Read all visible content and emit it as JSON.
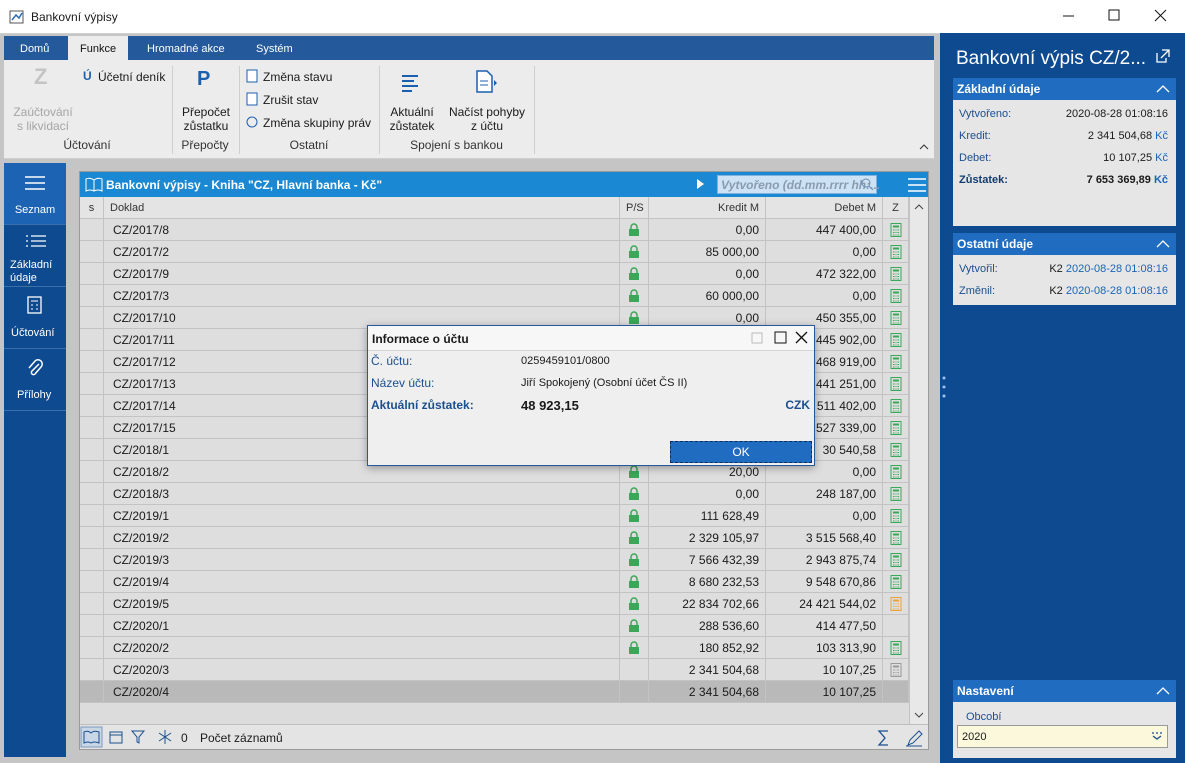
{
  "window": {
    "title": "Bankovní výpisy"
  },
  "ribbon": {
    "tabs": [
      "Domů",
      "Funkce",
      "Hromadné akce",
      "Systém"
    ],
    "active_tab": 1,
    "groups": [
      {
        "label": "Účtování",
        "items": [
          "Zaúčtování\ns likvidací",
          "Účetní deník"
        ]
      },
      {
        "label": "Přepočty",
        "items": [
          "Přepočet\nzůstatku"
        ]
      },
      {
        "label": "Ostatní",
        "items": [
          "Změna stavu",
          "Zrušit stav",
          "Změna skupiny práv"
        ]
      },
      {
        "label": "Spojení s bankou",
        "items": [
          "Aktuální\nzůstatek",
          "Načíst pohyby\nz účtu"
        ]
      }
    ]
  },
  "sidebar": {
    "items": [
      "Seznam",
      "Základní\núdaje",
      "Účtování",
      "Přílohy"
    ],
    "active": 0
  },
  "grid": {
    "title": "Bankovní výpisy - Kniha \"CZ, Hlavní banka - Kč\"",
    "search_placeholder": "Vytvořeno (dd.mm.rrrr hh:...",
    "columns": [
      "s",
      "Doklad",
      "P/S",
      "Kredit M",
      "Debet M",
      "Z"
    ],
    "selected_row": 21,
    "rows": [
      {
        "doklad": "CZ/2017/8",
        "kredit": "0,00",
        "debet": "447 400,00",
        "locked": true,
        "calc": "green"
      },
      {
        "doklad": "CZ/2017/2",
        "kredit": "85 000,00",
        "debet": "0,00",
        "locked": true,
        "calc": "green"
      },
      {
        "doklad": "CZ/2017/9",
        "kredit": "0,00",
        "debet": "472 322,00",
        "locked": true,
        "calc": "green"
      },
      {
        "doklad": "CZ/2017/3",
        "kredit": "60 000,00",
        "debet": "0,00",
        "locked": true,
        "calc": "green"
      },
      {
        "doklad": "CZ/2017/10",
        "kredit": "0,00",
        "debet": "450 355,00",
        "locked": true,
        "calc": "green"
      },
      {
        "doklad": "CZ/2017/11",
        "kredit": null,
        "debet": "445 902,00",
        "locked": true,
        "calc": "green"
      },
      {
        "doklad": "CZ/2017/12",
        "kredit": null,
        "debet": "468 919,00",
        "locked": true,
        "calc": "green"
      },
      {
        "doklad": "CZ/2017/13",
        "kredit": null,
        "debet": "441 251,00",
        "locked": true,
        "calc": "green"
      },
      {
        "doklad": "CZ/2017/14",
        "kredit": null,
        "debet": "511 402,00",
        "locked": true,
        "calc": "green"
      },
      {
        "doklad": "CZ/2017/15",
        "kredit": null,
        "debet": "527 339,00",
        "locked": true,
        "calc": "green"
      },
      {
        "doklad": "CZ/2018/1",
        "kredit": null,
        "debet": "30 540,58",
        "locked": true,
        "calc": "green"
      },
      {
        "doklad": "CZ/2018/2",
        "kredit": "20,00",
        "debet": "0,00",
        "locked": true,
        "calc": "green"
      },
      {
        "doklad": "CZ/2018/3",
        "kredit": "0,00",
        "debet": "248 187,00",
        "locked": true,
        "calc": "green"
      },
      {
        "doklad": "CZ/2019/1",
        "kredit": "111 628,49",
        "debet": "0,00",
        "locked": true,
        "calc": "green"
      },
      {
        "doklad": "CZ/2019/2",
        "kredit": "2 329 105,97",
        "debet": "3 515 568,40",
        "locked": true,
        "calc": "green"
      },
      {
        "doklad": "CZ/2019/3",
        "kredit": "7 566 432,39",
        "debet": "2 943 875,74",
        "locked": true,
        "calc": "green"
      },
      {
        "doklad": "CZ/2019/4",
        "kredit": "8 680 232,53",
        "debet": "9 548 670,86",
        "locked": true,
        "calc": "green"
      },
      {
        "doklad": "CZ/2019/5",
        "kredit": "22 834 702,66",
        "debet": "24 421 544,02",
        "locked": true,
        "calc": "orange"
      },
      {
        "doklad": "CZ/2020/1",
        "kredit": "288 536,60",
        "debet": "414 477,50",
        "locked": true,
        "calc": null
      },
      {
        "doklad": "CZ/2020/2",
        "kredit": "180 852,92",
        "debet": "103 313,90",
        "locked": true,
        "calc": "green"
      },
      {
        "doklad": "CZ/2020/3",
        "kredit": "2 341 504,68",
        "debet": "10 107,25",
        "locked": false,
        "calc": "gray"
      },
      {
        "doklad": "CZ/2020/4",
        "kredit": "2 341 504,68",
        "debet": "10 107,25",
        "locked": false,
        "calc": null
      }
    ],
    "footer": {
      "filter_count": "0",
      "record_count_label": "Počet záznamů"
    }
  },
  "dialog": {
    "title": "Informace o účtu",
    "fields": [
      {
        "label": "Č. účtu:",
        "value": "0259459101/0800"
      },
      {
        "label": "Název účtu:",
        "value": "Jiří Spokojený (Osobní účet ČS II)"
      },
      {
        "label": "Aktuální zůstatek:",
        "value": "48 923,15",
        "currency": "CZK"
      }
    ],
    "button": "OK"
  },
  "detail": {
    "title": "Bankovní výpis CZ/2...",
    "sections": [
      {
        "title": "Základní údaje",
        "fields": [
          {
            "label": "Vytvořeno:",
            "value": "2020-08-28 01:08:16"
          },
          {
            "label": "Kredit:",
            "value": "2 341 504,68",
            "unit": "Kč"
          },
          {
            "label": "Debet:",
            "value": "10 107,25",
            "unit": "Kč"
          },
          {
            "label": "Zůstatek:",
            "value": "7 653 369,89",
            "unit": "Kč"
          }
        ]
      },
      {
        "title": "Ostatní údaje",
        "fields": [
          {
            "label": "Vytvořil:",
            "user": "K2",
            "value": "2020-08-28 01:08:16"
          },
          {
            "label": "Změnil:",
            "user": "K2",
            "value": "2020-08-28 01:08:16"
          }
        ]
      },
      {
        "title": "Nastavení",
        "fields": [
          {
            "label": "Obcobí",
            "value": "2020"
          }
        ]
      }
    ]
  }
}
